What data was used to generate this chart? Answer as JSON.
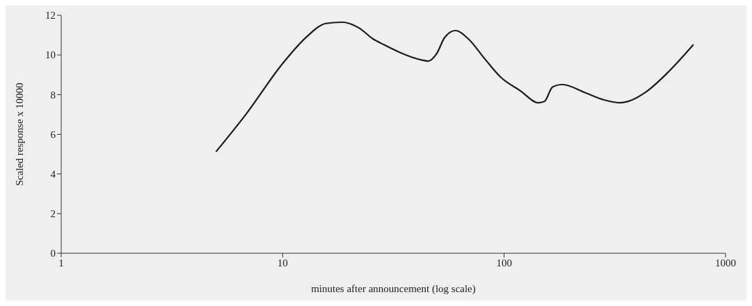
{
  "chart_data": {
    "type": "line",
    "xlabel": "minutes after announcement (log scale)",
    "ylabel": "Scaled response x 10000",
    "log": "x",
    "xlim": [
      1,
      1000
    ],
    "xticks": [
      1,
      10,
      100,
      1000
    ],
    "ylim": [
      0,
      12
    ],
    "yticks": [
      0,
      2,
      4,
      6,
      8,
      10,
      12
    ],
    "grid": false,
    "legend": false,
    "marker": "none",
    "line_style": "solid",
    "series": [
      {
        "color": "#1a1a1a",
        "x": [
          5.0,
          6.84,
          10,
          12.9,
          15.7,
          18.5,
          22.2,
          25.5,
          28.6,
          42.3,
          45.5,
          49.5,
          53.9,
          60.3,
          68.8,
          81.7,
          96.9,
          117.8,
          143,
          152,
          165.6,
          182.7,
          233,
          283,
          332,
          361,
          439,
          547,
          716
        ],
        "values": [
          5.12,
          7.02,
          9.57,
          10.94,
          11.59,
          11.65,
          11.35,
          10.82,
          10.52,
          9.75,
          9.69,
          10.05,
          10.88,
          11.23,
          10.82,
          9.81,
          8.86,
          8.21,
          7.59,
          7.65,
          8.39,
          8.51,
          8.09,
          7.73,
          7.59,
          7.65,
          8.15,
          9.1,
          10.52
        ]
      }
    ]
  }
}
